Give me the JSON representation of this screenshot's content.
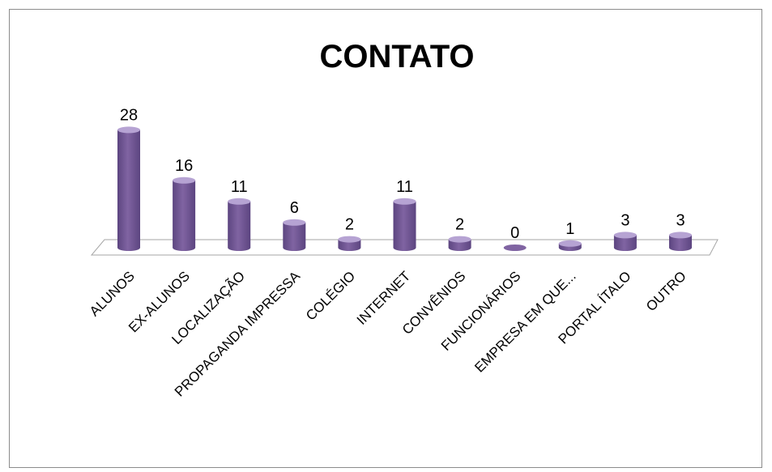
{
  "chart_data": {
    "type": "bar",
    "title": "CONTATO",
    "categories": [
      "ALUNOS",
      "EX-ALUNOS",
      "LOCALIZAÇÃO",
      "PROPAGANDA IMPRESSA",
      "COLÉGIO",
      "INTERNET",
      "CONVÊNIOS",
      "FUNCIONÁRIOS",
      "EMPRESA EM QUE...",
      "PORTAL ÍTALO",
      "OUTRO"
    ],
    "values": [
      28,
      16,
      11,
      6,
      2,
      11,
      2,
      0,
      1,
      3,
      3
    ],
    "data_labels": [
      "28",
      "16",
      "11",
      "6",
      "2",
      "11",
      "2",
      "0",
      "1",
      "3",
      "3"
    ],
    "ylim": [
      0,
      30
    ],
    "grid": false,
    "legend": "none",
    "style": "3d-cylinder",
    "bar_color": "#8064a2",
    "bar_top_color": "#b6a3d3",
    "bar_dark_color": "#5c4580"
  }
}
